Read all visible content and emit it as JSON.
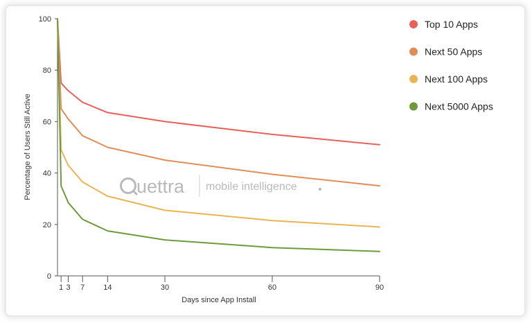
{
  "chart_data": {
    "type": "line",
    "xlabel": "Days since App Install",
    "ylabel": "Percentage of Users Still Active",
    "xlim": [
      0,
      90
    ],
    "ylim": [
      0,
      100
    ],
    "x_ticks": [
      1,
      3,
      7,
      14,
      30,
      60,
      90
    ],
    "y_ticks": [
      0,
      20,
      40,
      60,
      80,
      100
    ],
    "grid": false,
    "legend_position": "right",
    "watermark": {
      "brand": "Quettra",
      "tagline": "mobile intelligence"
    },
    "series": [
      {
        "name": "Top 10 Apps",
        "color": "#e8605a",
        "x": [
          0,
          1,
          3,
          7,
          14,
          30,
          60,
          90
        ],
        "y": [
          100,
          75,
          72,
          67.5,
          63.5,
          60,
          55,
          51
        ]
      },
      {
        "name": "Next 50 Apps",
        "color": "#e08d5a",
        "x": [
          0,
          1,
          3,
          7,
          14,
          30,
          60,
          90
        ],
        "y": [
          100,
          65,
          61,
          54.5,
          50,
          45,
          39.5,
          35
        ]
      },
      {
        "name": "Next 100 Apps",
        "color": "#e7b552",
        "x": [
          0,
          1,
          3,
          7,
          14,
          30,
          60,
          90
        ],
        "y": [
          100,
          49,
          43,
          36.5,
          31,
          25.5,
          21.5,
          19
        ]
      },
      {
        "name": "Next 5000 Apps",
        "color": "#6e9a3c",
        "x": [
          0,
          1,
          3,
          7,
          14,
          30,
          60,
          90
        ],
        "y": [
          100,
          35,
          28.5,
          22,
          17.5,
          14,
          11,
          9.5
        ]
      }
    ]
  }
}
